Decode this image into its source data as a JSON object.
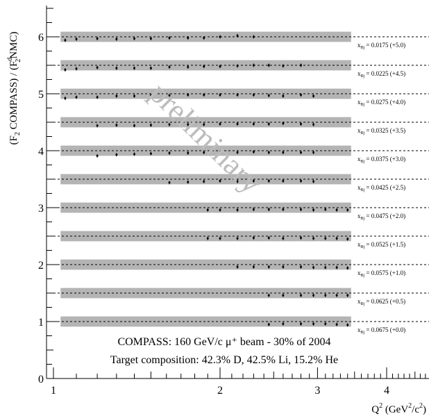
{
  "chart_data": {
    "type": "scatter",
    "title": "",
    "ylabel_parts": [
      "(F",
      "2",
      " COMPASS) / (F",
      "d",
      "2",
      "NMC)"
    ],
    "xlabel_parts": [
      "Q",
      "2",
      " (GeV",
      "2",
      "/c",
      "2",
      ")"
    ],
    "xscale": "log",
    "xlim": [
      1,
      5
    ],
    "ylim": [
      0,
      6.5
    ],
    "x_ticks": [
      1,
      2,
      3,
      4
    ],
    "x_tick_labels": [
      "1",
      "2",
      "3",
      "4"
    ],
    "y_ticks": [
      0,
      1,
      2,
      3,
      4,
      5,
      6
    ],
    "y_tick_labels": [
      "0",
      "1",
      "2",
      "3",
      "4",
      "5",
      "6"
    ],
    "grid": false,
    "watermark": "preliminary",
    "annotation_lines": [
      "COMPASS: 160 GeV/c μ⁺ beam - 30% of 2004",
      "Target composition: 42.3% D, 42.5% Li, 15.2% He"
    ],
    "band": {
      "x_range": [
        1.03,
        3.45
      ],
      "half_height": 0.09
    },
    "series": [
      {
        "label_x": "x",
        "label_sub": "Bj",
        "label_rest": " = 0.0175 (+5.0)",
        "offset": 5.0,
        "x": [
          1.05,
          1.1,
          1.2,
          1.3,
          1.4,
          1.5,
          1.62,
          1.75,
          1.87,
          2.0,
          2.15,
          2.3
        ],
        "y": [
          5.94,
          5.96,
          5.97,
          5.96,
          5.97,
          5.97,
          5.98,
          5.98,
          5.98,
          6.0,
          6.02,
          6.0
        ]
      },
      {
        "label_x": "x",
        "label_sub": "Bj",
        "label_rest": " = 0.0225 (+4.5)",
        "offset": 4.5,
        "x": [
          1.05,
          1.1,
          1.2,
          1.3,
          1.4,
          1.5,
          1.62,
          1.75,
          1.87,
          2.0,
          2.15,
          2.3,
          2.45,
          2.6,
          2.8
        ],
        "y": [
          5.42,
          5.44,
          5.46,
          5.45,
          5.45,
          5.45,
          5.47,
          5.47,
          5.48,
          5.48,
          5.49,
          5.5,
          5.5,
          5.49,
          5.5
        ]
      },
      {
        "label_x": "x",
        "label_sub": "Bj",
        "label_rest": " = 0.0275 (+4.0)",
        "offset": 4.0,
        "x": [
          1.05,
          1.1,
          1.2,
          1.3,
          1.4,
          1.5,
          1.62,
          1.75,
          1.87,
          2.0,
          2.15,
          2.3,
          2.45,
          2.6,
          2.8,
          2.95
        ],
        "y": [
          4.92,
          4.94,
          4.94,
          4.96,
          4.96,
          4.97,
          4.97,
          4.98,
          4.98,
          4.98,
          4.98,
          4.98,
          4.97,
          4.96,
          4.98,
          4.96
        ]
      },
      {
        "label_x": "x",
        "label_sub": "Bj",
        "label_rest": " = 0.0325 (+3.5)",
        "offset": 3.5,
        "x": [
          1.2,
          1.3,
          1.4,
          1.5,
          1.62,
          1.75,
          1.87,
          2.0,
          2.15,
          2.3,
          2.45,
          2.6,
          2.8,
          2.95
        ],
        "y": [
          4.44,
          4.45,
          4.44,
          4.45,
          4.46,
          4.46,
          4.46,
          4.47,
          4.47,
          4.47,
          4.47,
          4.48,
          4.47,
          4.46
        ]
      },
      {
        "label_x": "x",
        "label_sub": "Bj",
        "label_rest": " = 0.0375 (+3.0)",
        "offset": 3.0,
        "x": [
          1.2,
          1.3,
          1.4,
          1.5,
          1.62,
          1.75,
          1.87,
          2.0,
          2.15,
          2.3,
          2.45,
          2.6,
          2.8,
          2.95
        ],
        "y": [
          3.91,
          3.93,
          3.94,
          3.95,
          3.96,
          3.96,
          3.97,
          3.97,
          3.97,
          3.98,
          3.97,
          3.97,
          3.97,
          3.97
        ]
      },
      {
        "label_x": "x",
        "label_sub": "Bj",
        "label_rest": " = 0.0425 (+2.5)",
        "offset": 2.5,
        "x": [
          1.62,
          1.75,
          1.87,
          2.0,
          2.15,
          2.3,
          2.45,
          2.6,
          2.8,
          2.95
        ],
        "y": [
          3.44,
          3.45,
          3.46,
          3.47,
          3.46,
          3.47,
          3.47,
          3.47,
          3.47,
          3.46
        ]
      },
      {
        "label_x": "x",
        "label_sub": "Bj",
        "label_rest": " = 0.0475 (+2.0)",
        "offset": 2.0,
        "x": [
          1.9,
          2.0,
          2.15,
          2.3,
          2.45,
          2.6,
          2.8,
          2.95,
          3.1,
          3.25,
          3.4
        ],
        "y": [
          2.96,
          2.96,
          2.96,
          2.97,
          2.97,
          2.97,
          2.97,
          2.96,
          2.97,
          2.96,
          2.96
        ]
      },
      {
        "label_x": "x",
        "label_sub": "Bj",
        "label_rest": " = 0.0525 (+1.5)",
        "offset": 1.5,
        "x": [
          1.9,
          2.0,
          2.15,
          2.3,
          2.45,
          2.6,
          2.8,
          2.95,
          3.1,
          3.25,
          3.4
        ],
        "y": [
          2.46,
          2.46,
          2.46,
          2.47,
          2.47,
          2.46,
          2.47,
          2.46,
          2.46,
          2.46,
          2.45
        ]
      },
      {
        "label_x": "x",
        "label_sub": "Bj",
        "label_rest": " = 0.0575 (+1.0)",
        "offset": 1.0,
        "x": [
          2.15,
          2.3,
          2.45,
          2.6,
          2.8,
          2.95,
          3.1,
          3.25,
          3.4
        ],
        "y": [
          1.96,
          1.96,
          1.96,
          1.96,
          1.96,
          1.95,
          1.95,
          1.95,
          1.94
        ]
      },
      {
        "label_x": "x",
        "label_sub": "Bj",
        "label_rest": " = 0.0625 (+0.5)",
        "offset": 0.5,
        "x": [
          2.45,
          2.6,
          2.8,
          2.95,
          3.1,
          3.25,
          3.4
        ],
        "y": [
          1.46,
          1.46,
          1.46,
          1.46,
          1.46,
          1.46,
          1.46
        ]
      },
      {
        "label_x": "x",
        "label_sub": "Bj",
        "label_rest": " = 0.0675 (+0.0)",
        "offset": 0.0,
        "x": [
          2.45,
          2.6,
          2.8,
          2.95,
          3.1,
          3.25,
          3.4
        ],
        "y": [
          0.95,
          0.96,
          0.96,
          0.96,
          0.96,
          0.95,
          0.94
        ]
      }
    ]
  }
}
